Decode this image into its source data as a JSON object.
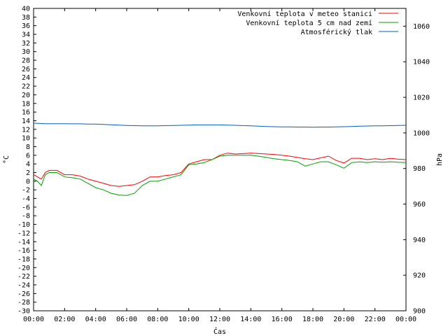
{
  "chart_data": {
    "type": "line",
    "xlabel": "Čas",
    "ylabel": "°C",
    "y2label": "hPa",
    "x_ticks": [
      "00:00",
      "02:00",
      "04:00",
      "06:00",
      "08:00",
      "10:00",
      "12:00",
      "14:00",
      "16:00",
      "18:00",
      "20:00",
      "22:00",
      "00:00"
    ],
    "ylim": [
      -30,
      40
    ],
    "y_ticks": [
      -30,
      -28,
      -26,
      -24,
      -22,
      -20,
      -18,
      -16,
      -14,
      -12,
      -10,
      -8,
      -6,
      -4,
      -2,
      0,
      2,
      4,
      6,
      8,
      10,
      12,
      14,
      16,
      18,
      20,
      22,
      24,
      26,
      28,
      30,
      32,
      34,
      36,
      38,
      40
    ],
    "y2lim": [
      900,
      1070
    ],
    "y2_ticks": [
      900,
      920,
      940,
      960,
      980,
      1000,
      1020,
      1040,
      1060
    ],
    "grid": false,
    "legend_position": "top-right",
    "x_hours": [
      0,
      0.25,
      0.5,
      0.75,
      1,
      1.5,
      2,
      2.5,
      3,
      3.5,
      4,
      4.5,
      5,
      5.5,
      6,
      6.5,
      7,
      7.5,
      8,
      8.5,
      9,
      9.5,
      10,
      10.5,
      11,
      11.5,
      12,
      12.5,
      13,
      13.5,
      14,
      14.5,
      15,
      15.5,
      16,
      16.5,
      17,
      17.5,
      18,
      18.5,
      19,
      19.5,
      20,
      20.5,
      21,
      21.5,
      22,
      22.5,
      23,
      23.5,
      24
    ],
    "series": [
      {
        "name": "Venkovní teplota v meteo stanici",
        "color": "#ff0000",
        "axis": "left",
        "values": [
          1.5,
          1.0,
          0.5,
          2.0,
          2.5,
          2.5,
          1.5,
          1.5,
          1.2,
          0.5,
          0.0,
          -0.5,
          -1.0,
          -1.2,
          -1.0,
          -0.8,
          0.0,
          1.0,
          1.0,
          1.3,
          1.5,
          2.0,
          4.0,
          4.5,
          5.0,
          5.0,
          6.0,
          6.5,
          6.3,
          6.4,
          6.5,
          6.4,
          6.3,
          6.2,
          6.0,
          5.8,
          5.5,
          5.2,
          5.0,
          5.4,
          5.8,
          4.8,
          4.2,
          5.3,
          5.3,
          5.0,
          5.2,
          5.0,
          5.3,
          5.1,
          5.0
        ]
      },
      {
        "name": "Venkovní teplota 5 cm nad zemí",
        "color": "#00a000",
        "axis": "left",
        "values": [
          0.5,
          0.0,
          -1.0,
          1.5,
          2.0,
          2.0,
          1.0,
          0.8,
          0.5,
          -0.5,
          -1.5,
          -2.0,
          -2.8,
          -3.2,
          -3.3,
          -2.8,
          -1.0,
          0.0,
          0.0,
          0.5,
          1.0,
          1.5,
          3.8,
          4.0,
          4.3,
          5.0,
          5.8,
          6.0,
          6.0,
          6.0,
          6.0,
          5.8,
          5.5,
          5.2,
          5.0,
          4.8,
          4.5,
          3.5,
          4.0,
          4.5,
          4.5,
          3.8,
          3.0,
          4.3,
          4.5,
          4.3,
          4.5,
          4.4,
          4.5,
          4.4,
          4.3
        ]
      },
      {
        "name": "Atmosférický tlak",
        "color": "#0060c0",
        "axis": "right",
        "values": [
          1005.5,
          1005.4,
          1005.3,
          1005.2,
          1005.2,
          1005.2,
          1005.2,
          1005.1,
          1005.1,
          1005.0,
          1005.0,
          1004.8,
          1004.6,
          1004.4,
          1004.2,
          1004.1,
          1004.0,
          1004.0,
          1004.0,
          1004.1,
          1004.2,
          1004.3,
          1004.4,
          1004.5,
          1004.5,
          1004.5,
          1004.5,
          1004.4,
          1004.3,
          1004.1,
          1004.0,
          1003.8,
          1003.6,
          1003.5,
          1003.4,
          1003.4,
          1003.3,
          1003.3,
          1003.2,
          1003.3,
          1003.3,
          1003.4,
          1003.5,
          1003.6,
          1003.8,
          1003.9,
          1004.0,
          1004.0,
          1004.1,
          1004.2,
          1004.3
        ]
      }
    ]
  }
}
